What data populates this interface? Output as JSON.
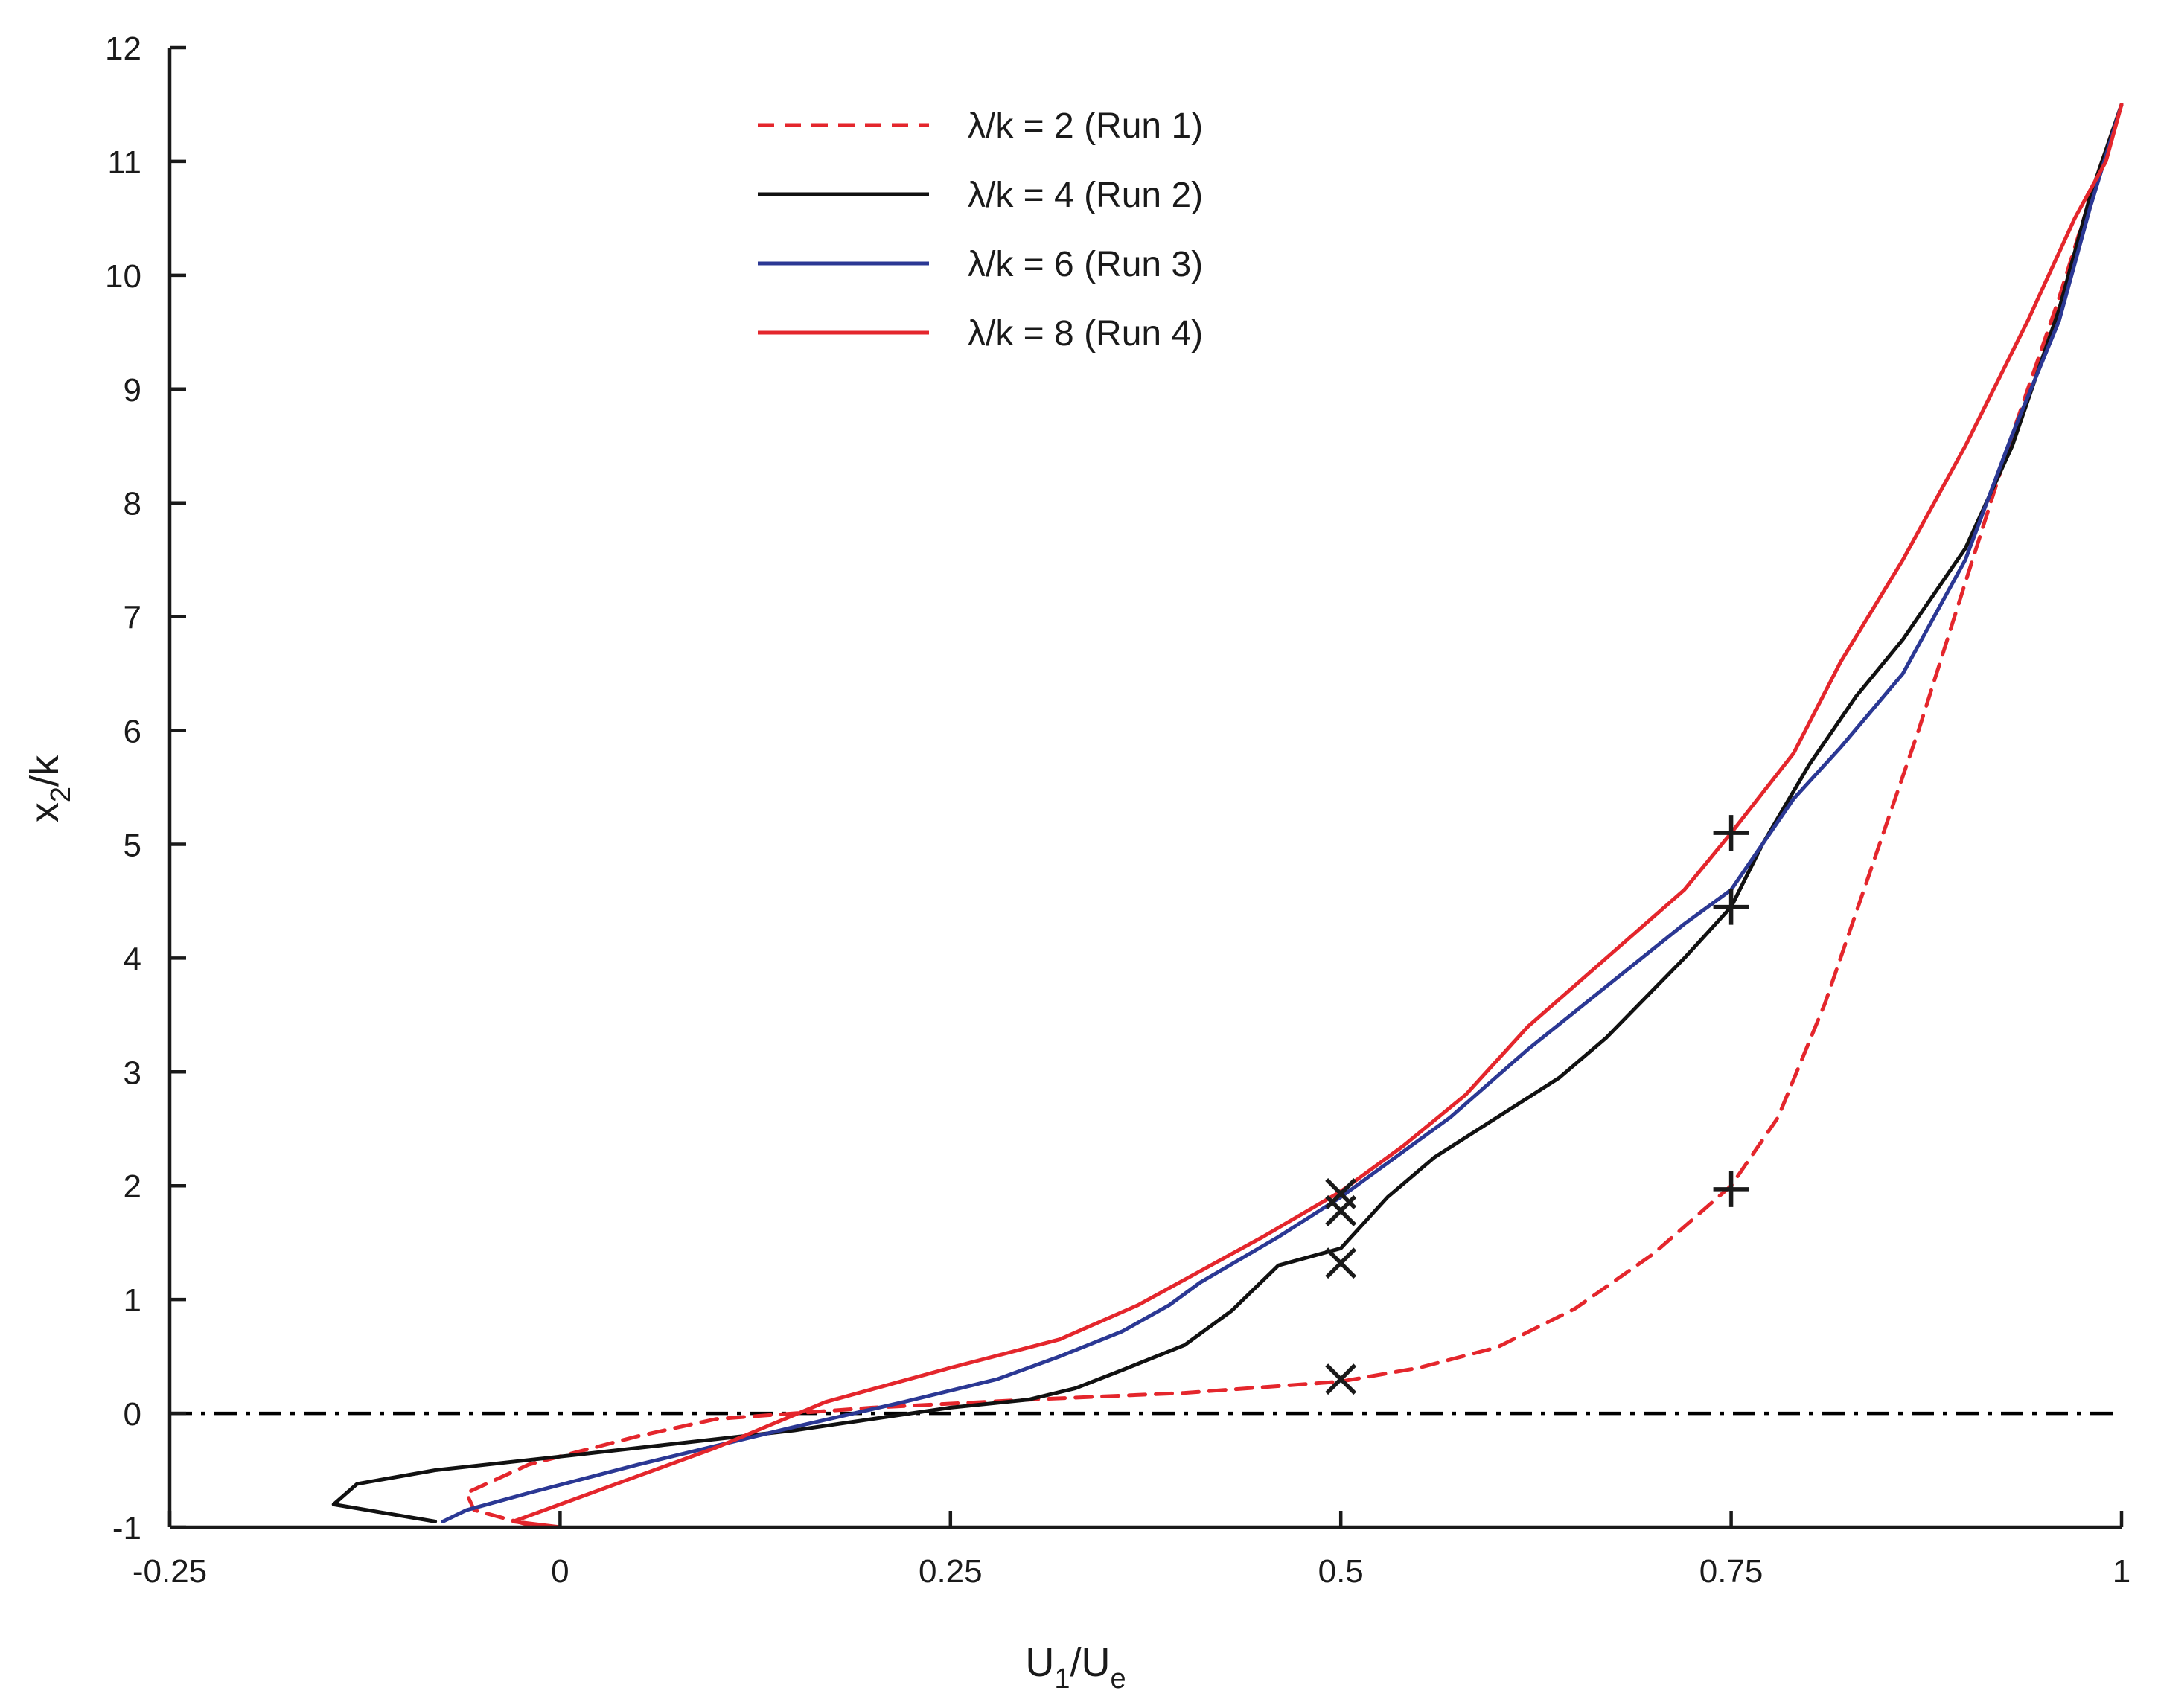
{
  "chart_data": {
    "type": "line",
    "title": "",
    "xlabel": {
      "main": "U",
      "sub1": "1",
      "sep": "/U",
      "sub2": "e"
    },
    "ylabel": {
      "main": "x",
      "sub": "2",
      "rest": "/k"
    },
    "xlim": [
      -0.25,
      1
    ],
    "ylim": [
      -1,
      12
    ],
    "xticks": [
      {
        "value": -0.25,
        "label": "-0.25"
      },
      {
        "value": 0,
        "label": "0"
      },
      {
        "value": 0.25,
        "label": "0.25"
      },
      {
        "value": 0.5,
        "label": "0.5"
      },
      {
        "value": 0.75,
        "label": "0.75"
      },
      {
        "value": 1,
        "label": "1"
      }
    ],
    "yticks": [
      {
        "value": -1,
        "label": "-1"
      },
      {
        "value": 0,
        "label": "0"
      },
      {
        "value": 1,
        "label": "1"
      },
      {
        "value": 2,
        "label": "2"
      },
      {
        "value": 3,
        "label": "3"
      },
      {
        "value": 4,
        "label": "4"
      },
      {
        "value": 5,
        "label": "5"
      },
      {
        "value": 6,
        "label": "6"
      },
      {
        "value": 7,
        "label": "7"
      },
      {
        "value": 8,
        "label": "8"
      },
      {
        "value": 9,
        "label": "9"
      },
      {
        "value": 10,
        "label": "10"
      },
      {
        "value": 11,
        "label": "11"
      },
      {
        "value": 12,
        "label": "12"
      }
    ],
    "grid": false,
    "legend_position": "top-center",
    "reference_line": {
      "y": 0,
      "style": "dash-dot",
      "color": "#000000",
      "x_range": [
        -0.25,
        1
      ]
    },
    "series": [
      {
        "name": "λ/k = 2 (Run 1)",
        "color": "#e4262c",
        "dash": "dashed",
        "x": [
          -0.02,
          -0.055,
          -0.06,
          -0.02,
          0.05,
          0.1,
          0.2,
          0.3,
          0.4,
          0.5,
          0.55,
          0.6,
          0.65,
          0.7,
          0.75,
          0.78,
          0.81,
          0.84,
          0.87,
          0.9,
          0.93,
          0.96,
          0.985,
          1.0
        ],
        "y": [
          -0.98,
          -0.85,
          -0.7,
          -0.45,
          -0.2,
          -0.05,
          0.05,
          0.12,
          0.18,
          0.28,
          0.4,
          0.58,
          0.92,
          1.4,
          2.0,
          2.6,
          3.6,
          4.8,
          6.0,
          7.3,
          8.6,
          9.8,
          10.9,
          11.5
        ]
      },
      {
        "name": "λ/k = 4 (Run 2)",
        "color": "#111111",
        "dash": "solid",
        "x": [
          -0.08,
          -0.145,
          -0.13,
          -0.08,
          0.0,
          0.15,
          0.25,
          0.3,
          0.33,
          0.36,
          0.4,
          0.43,
          0.46,
          0.5,
          0.53,
          0.56,
          0.6,
          0.64,
          0.67,
          0.695,
          0.72,
          0.75,
          0.77,
          0.8,
          0.83,
          0.86,
          0.9,
          0.93,
          0.96,
          0.98,
          1.0
        ],
        "y": [
          -0.95,
          -0.8,
          -0.62,
          -0.5,
          -0.38,
          -0.15,
          0.05,
          0.12,
          0.22,
          0.38,
          0.6,
          0.9,
          1.3,
          1.45,
          1.9,
          2.25,
          2.6,
          2.95,
          3.3,
          3.65,
          4.0,
          4.45,
          5.0,
          5.7,
          6.3,
          6.8,
          7.6,
          8.5,
          9.7,
          10.7,
          11.5
        ]
      },
      {
        "name": "λ/k = 6 (Run 3)",
        "color": "#2b3894",
        "dash": "solid",
        "x": [
          -0.075,
          -0.06,
          -0.02,
          0.05,
          0.15,
          0.22,
          0.28,
          0.32,
          0.36,
          0.39,
          0.41,
          0.46,
          0.5,
          0.53,
          0.57,
          0.62,
          0.67,
          0.72,
          0.75,
          0.79,
          0.82,
          0.86,
          0.9,
          0.93,
          0.96,
          0.98,
          1.0
        ],
        "y": [
          -0.95,
          -0.85,
          -0.7,
          -0.45,
          -0.12,
          0.1,
          0.3,
          0.5,
          0.72,
          0.95,
          1.15,
          1.55,
          1.9,
          2.2,
          2.6,
          3.2,
          3.75,
          4.3,
          4.6,
          5.4,
          5.85,
          6.5,
          7.5,
          8.6,
          9.6,
          10.6,
          11.5
        ]
      },
      {
        "name": "λ/k = 8 (Run 4)",
        "color": "#e4262c",
        "dash": "solid",
        "x": [
          0.0,
          -0.03,
          0.0,
          0.05,
          0.1,
          0.17,
          0.25,
          0.32,
          0.37,
          0.41,
          0.45,
          0.5,
          0.54,
          0.58,
          0.62,
          0.67,
          0.72,
          0.75,
          0.79,
          0.82,
          0.86,
          0.9,
          0.94,
          0.97,
          0.99,
          1.0
        ],
        "y": [
          -1.0,
          -0.95,
          -0.8,
          -0.55,
          -0.3,
          0.1,
          0.4,
          0.65,
          0.95,
          1.25,
          1.55,
          1.95,
          2.35,
          2.8,
          3.4,
          4.0,
          4.6,
          5.1,
          5.8,
          6.6,
          7.5,
          8.5,
          9.6,
          10.5,
          11.0,
          11.5
        ]
      }
    ],
    "markers": [
      {
        "symbol": "x",
        "x": 0.5,
        "y": 0.3
      },
      {
        "symbol": "x",
        "x": 0.5,
        "y": 1.32
      },
      {
        "symbol": "x",
        "x": 0.5,
        "y": 1.78
      },
      {
        "symbol": "x",
        "x": 0.5,
        "y": 1.93
      },
      {
        "symbol": "+",
        "x": 0.75,
        "y": 1.97
      },
      {
        "symbol": "+",
        "x": 0.75,
        "y": 4.45
      },
      {
        "symbol": "+",
        "x": 0.75,
        "y": 5.1
      }
    ]
  }
}
